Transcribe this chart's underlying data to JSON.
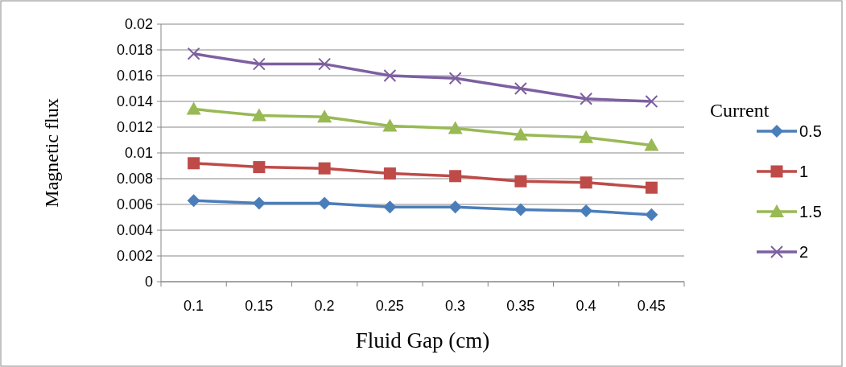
{
  "chart_data": {
    "type": "line",
    "xlabel": "Fluid Gap (cm)",
    "ylabel": "Magnetic  flux",
    "legend_title": "Current",
    "legend": "right",
    "categories": [
      "0.1",
      "0.15",
      "0.2",
      "0.25",
      "0.3",
      "0.35",
      "0.4",
      "0.45"
    ],
    "ylim": [
      0,
      0.02
    ],
    "yticks": [
      0,
      0.002,
      0.004,
      0.006,
      0.008,
      0.01,
      0.012,
      0.014,
      0.016,
      0.018,
      0.02
    ],
    "grid": "y",
    "series": [
      {
        "name": "0.5",
        "color": "#4a7ebb",
        "marker": "diamond",
        "values": [
          0.0063,
          0.0061,
          0.0061,
          0.0058,
          0.0058,
          0.0056,
          0.0055,
          0.0052
        ]
      },
      {
        "name": "1",
        "color": "#be4b48",
        "marker": "square",
        "values": [
          0.0092,
          0.0089,
          0.0088,
          0.0084,
          0.0082,
          0.0078,
          0.0077,
          0.0073
        ]
      },
      {
        "name": "1.5",
        "color": "#98b954",
        "marker": "triangle",
        "values": [
          0.0134,
          0.0129,
          0.0128,
          0.0121,
          0.0119,
          0.0114,
          0.0112,
          0.0106
        ]
      },
      {
        "name": "2",
        "color": "#7d60a0",
        "marker": "cross",
        "values": [
          0.0177,
          0.0169,
          0.0169,
          0.016,
          0.0158,
          0.015,
          0.0142,
          0.014
        ]
      }
    ]
  }
}
